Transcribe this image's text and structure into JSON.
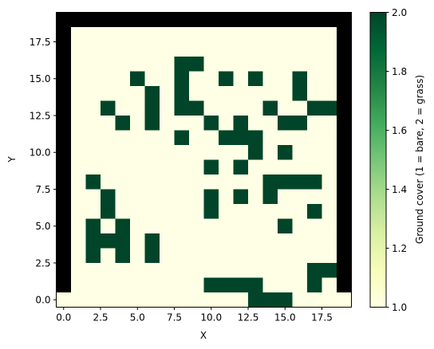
{
  "chart_data": {
    "type": "heatmap",
    "title": "",
    "xlabel": "X",
    "ylabel": "Y",
    "colorbar_label": "Ground cover (1 = bare, 2 = grass)",
    "colormap": "YlGn",
    "color_low": "#ffffe5",
    "color_high": "#004529",
    "boundary_color": "#000000",
    "boundary_value": "no data / wall",
    "grid": false,
    "x_range": [
      -0.5,
      19.5
    ],
    "y_range": [
      -0.5,
      19.5
    ],
    "x_ticks": [
      0.0,
      2.5,
      5.0,
      7.5,
      10.0,
      12.5,
      15.0,
      17.5
    ],
    "x_tick_labels": [
      "0.0",
      "2.5",
      "5.0",
      "7.5",
      "10.0",
      "12.5",
      "15.0",
      "17.5"
    ],
    "y_ticks": [
      0.0,
      2.5,
      5.0,
      7.5,
      10.0,
      12.5,
      15.0,
      17.5
    ],
    "y_tick_labels": [
      "0.0",
      "2.5",
      "5.0",
      "7.5",
      "10.0",
      "12.5",
      "15.0",
      "17.5"
    ],
    "colorbar_range": [
      1.0,
      2.0
    ],
    "colorbar_ticks": [
      1.0,
      1.2,
      1.4,
      1.6,
      1.8,
      2.0
    ],
    "colorbar_tick_labels": [
      "1.0",
      "1.2",
      "1.4",
      "1.6",
      "1.8",
      "2.0"
    ],
    "grid_legend": "0 = boundary (black), 1 = bare, 2 = grass; rows listed from y = 19 (top) down to y = 0 (bottom), columns x = 0..19",
    "rows": [
      "00000000000000000000",
      "01111111111111111110",
      "01111111111111111110",
      "01111111221111111110",
      "01111211211212112110",
      "01111121211111112110",
      "01121121221111211220",
      "01112121112121122110",
      "01111111211222111110",
      "01111111111112121110",
      "01111111112121111110",
      "01211111111111222210",
      "01121111112121211110",
      "01121111112111111210",
      "01212111111111121110",
      "01222121111111111110",
      "01212121111111111110",
      "01111111111111111220",
      "01111111112222111210",
      "11111111111112221111"
    ]
  }
}
